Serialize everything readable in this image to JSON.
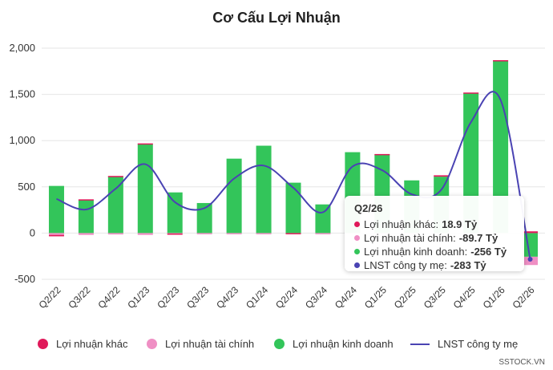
{
  "chart_data": {
    "type": "bar",
    "title": "Cơ Cấu Lợi Nhuận",
    "categories": [
      "Q2/22",
      "Q3/22",
      "Q4/22",
      "Q1/23",
      "Q2/23",
      "Q3/23",
      "Q4/23",
      "Q1/24",
      "Q2/24",
      "Q3/24",
      "Q4/24",
      "Q1/25",
      "Q2/25",
      "Q3/25",
      "Q4/25",
      "Q1/26",
      "Q2/26"
    ],
    "y_ticks": [
      "2,000",
      "1,500",
      "1,000",
      "500",
      "0",
      "-500"
    ],
    "ylim": [
      -500,
      2000
    ],
    "stacked": true,
    "grid": true,
    "legend_position": "bottom",
    "series": [
      {
        "name": "Lợi nhuận khác",
        "type": "bar",
        "color": "#e0195a",
        "values": [
          -15,
          5,
          3,
          5,
          -3,
          0,
          0,
          0,
          -5,
          0,
          0,
          5,
          0,
          15,
          10,
          5,
          18.9
        ]
      },
      {
        "name": "Lợi nhuận tài chính",
        "type": "bar",
        "color": "#ef8fc4",
        "values": [
          -20,
          -20,
          -15,
          -20,
          -5,
          -5,
          -5,
          -5,
          0,
          -5,
          0,
          -5,
          -5,
          0,
          0,
          0,
          -89.7
        ]
      },
      {
        "name": "Lợi nhuận kinh doanh",
        "type": "bar",
        "color": "#33c55a",
        "values": [
          510,
          360,
          615,
          965,
          440,
          325,
          805,
          945,
          545,
          310,
          875,
          850,
          570,
          610,
          1510,
          1865,
          -256
        ]
      },
      {
        "name": "LNST công ty mẹ",
        "type": "line",
        "color": "#4a43b3",
        "values": [
          370,
          255,
          480,
          745,
          335,
          270,
          590,
          730,
          490,
          225,
          720,
          680,
          420,
          470,
          1200,
          1440,
          -283
        ]
      }
    ]
  },
  "tooltip": {
    "title": "Q2/26",
    "rows": [
      {
        "label": "Lợi nhuận khác:",
        "value": "18.9 Tỷ",
        "color": "#e0195a"
      },
      {
        "label": "Lợi nhuận tài chính:",
        "value": "-89.7 Tỷ",
        "color": "#ef8fc4"
      },
      {
        "label": "Lợi nhuận kinh doanh:",
        "value": "-256 Tỷ",
        "color": "#33c55a"
      },
      {
        "label": "LNST công ty mẹ:",
        "value": "-283 Tỷ",
        "color": "#4a43b3"
      }
    ]
  },
  "site_mark": "SSTOCK.VN"
}
